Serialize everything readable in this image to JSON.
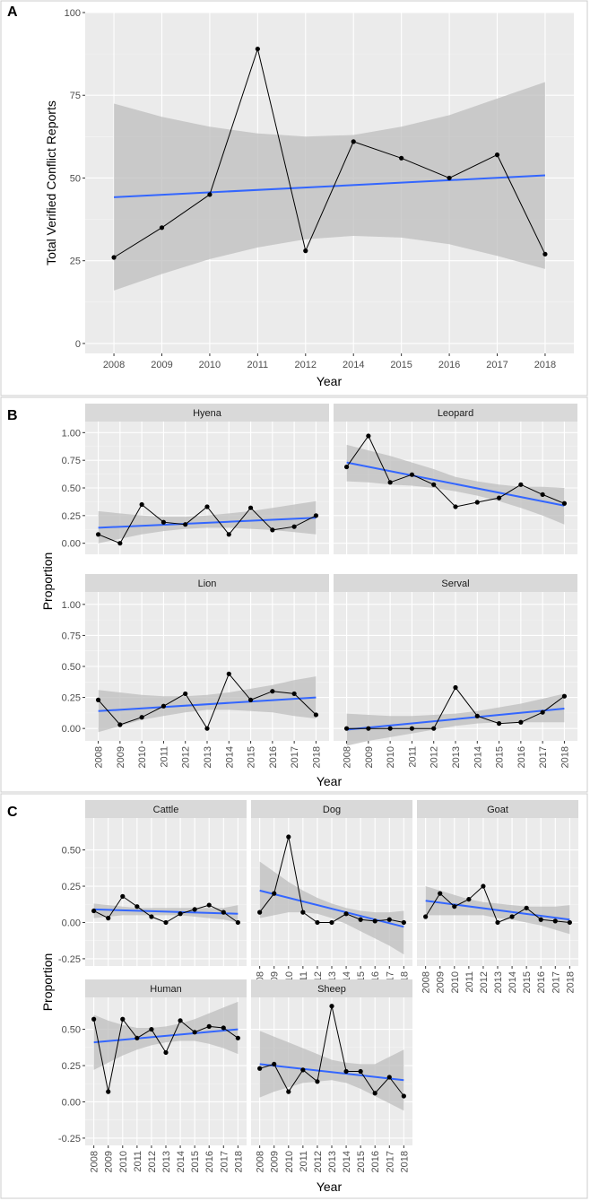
{
  "colors": {
    "panel_bg": "#ebebeb",
    "grid_major": "#ffffff",
    "grid_minor": "#f5f5f5",
    "ribbon": "#bdbdbd",
    "trend": "#3366ff",
    "series": "#000000",
    "strip_bg": "#d9d9d9",
    "border": "#cccccc"
  },
  "panels": {
    "a": {
      "letter": "A"
    },
    "b": {
      "letter": "B"
    },
    "c": {
      "letter": "C"
    }
  },
  "chart_data": [
    {
      "id": "A",
      "type": "line",
      "title": "",
      "xlabel": "Year",
      "ylabel": "Total Verified Conflict Reports",
      "categories": [
        "2008",
        "2009",
        "2010",
        "2011",
        "2012",
        "2014",
        "2015",
        "2016",
        "2017",
        "2018"
      ],
      "ylim": [
        -3,
        100
      ],
      "yticks": [
        0,
        25,
        50,
        75,
        100
      ],
      "series": [
        {
          "name": "Total",
          "values": [
            26,
            35,
            45,
            89,
            28,
            61,
            56,
            50,
            57,
            27
          ],
          "trend": [
            44.2,
            50.8
          ],
          "ribbon_low": [
            16,
            21,
            25.5,
            29,
            31.5,
            32.5,
            32,
            30,
            26.5,
            22.5
          ],
          "ribbon_high": [
            72.5,
            68.5,
            65.5,
            63.5,
            62.5,
            63,
            65.5,
            69,
            74,
            79
          ]
        }
      ]
    },
    {
      "id": "B",
      "type": "line",
      "xlabel": "Year",
      "ylabel": "Proportion",
      "categories": [
        "2008",
        "2009",
        "2010",
        "2011",
        "2012",
        "2013",
        "2014",
        "2015",
        "2016",
        "2017",
        "2018"
      ],
      "ylim": [
        -0.1,
        1.1
      ],
      "yticks": [
        0.0,
        0.25,
        0.5,
        0.75,
        1.0
      ],
      "ytick_labels": [
        "0.00",
        "0.25",
        "0.50",
        "0.75",
        "1.00"
      ],
      "series": [
        {
          "name": "Hyena",
          "values": [
            0.08,
            0.0,
            0.35,
            0.19,
            0.17,
            0.33,
            0.08,
            0.32,
            0.12,
            0.15,
            0.25
          ],
          "trend": [
            0.14,
            0.23
          ],
          "ribbon_low": [
            0.0,
            0.04,
            0.08,
            0.11,
            0.13,
            0.14,
            0.14,
            0.13,
            0.12,
            0.1,
            0.08
          ],
          "ribbon_high": [
            0.29,
            0.27,
            0.25,
            0.24,
            0.24,
            0.25,
            0.27,
            0.29,
            0.32,
            0.35,
            0.38
          ]
        },
        {
          "name": "Leopard",
          "values": [
            0.69,
            0.97,
            0.55,
            0.62,
            0.53,
            0.33,
            0.37,
            0.41,
            0.53,
            0.44,
            0.36
          ],
          "trend": [
            0.73,
            0.34
          ],
          "ribbon_low": [
            0.56,
            0.55,
            0.53,
            0.52,
            0.5,
            0.47,
            0.43,
            0.38,
            0.32,
            0.25,
            0.17
          ],
          "ribbon_high": [
            0.89,
            0.84,
            0.79,
            0.73,
            0.67,
            0.6,
            0.56,
            0.53,
            0.51,
            0.51,
            0.5
          ]
        },
        {
          "name": "Lion",
          "values": [
            0.23,
            0.03,
            0.09,
            0.18,
            0.28,
            0.0,
            0.44,
            0.23,
            0.3,
            0.28,
            0.11
          ],
          "trend": [
            0.14,
            0.25
          ],
          "ribbon_low": [
            -0.03,
            0.02,
            0.07,
            0.1,
            0.13,
            0.15,
            0.15,
            0.14,
            0.13,
            0.1,
            0.08
          ],
          "ribbon_high": [
            0.31,
            0.29,
            0.27,
            0.26,
            0.26,
            0.27,
            0.29,
            0.32,
            0.35,
            0.39,
            0.42
          ]
        },
        {
          "name": "Serval",
          "values": [
            0.0,
            0.0,
            0.0,
            0.0,
            0.0,
            0.33,
            0.1,
            0.04,
            0.05,
            0.13,
            0.26
          ],
          "trend": [
            -0.01,
            0.16
          ],
          "ribbon_low": [
            -0.14,
            -0.1,
            -0.07,
            -0.04,
            -0.01,
            0.02,
            0.04,
            0.05,
            0.05,
            0.05,
            0.05
          ],
          "ribbon_high": [
            0.12,
            0.11,
            0.1,
            0.1,
            0.11,
            0.12,
            0.14,
            0.17,
            0.2,
            0.24,
            0.28
          ]
        }
      ]
    },
    {
      "id": "C",
      "type": "line",
      "xlabel": "Year",
      "ylabel": "Proportion",
      "categories": [
        "2008",
        "2009",
        "2010",
        "2011",
        "2012",
        "2013",
        "2014",
        "2015",
        "2016",
        "2017",
        "2018"
      ],
      "ylim": [
        -0.3,
        0.72
      ],
      "yticks": [
        -0.25,
        0.0,
        0.25,
        0.5
      ],
      "ytick_labels": [
        "-0.25",
        "0.00",
        "0.25",
        "0.50"
      ],
      "series": [
        {
          "name": "Cattle",
          "values": [
            0.08,
            0.03,
            0.18,
            0.11,
            0.04,
            0.0,
            0.06,
            0.09,
            0.12,
            0.07,
            0.0
          ],
          "trend": [
            0.09,
            0.06
          ],
          "ribbon_low": [
            0.03,
            0.04,
            0.05,
            0.05,
            0.05,
            0.05,
            0.05,
            0.04,
            0.03,
            0.02,
            0.0
          ],
          "ribbon_high": [
            0.13,
            0.12,
            0.11,
            0.1,
            0.1,
            0.1,
            0.1,
            0.1,
            0.1,
            0.1,
            0.12
          ]
        },
        {
          "name": "Dog",
          "values": [
            0.07,
            0.2,
            0.59,
            0.07,
            0.0,
            0.0,
            0.06,
            0.02,
            0.01,
            0.02,
            0.0
          ],
          "trend": [
            0.22,
            -0.03
          ],
          "ribbon_low": [
            0.03,
            0.05,
            0.07,
            0.07,
            0.06,
            0.03,
            -0.01,
            -0.06,
            -0.11,
            -0.16,
            -0.22
          ],
          "ribbon_high": [
            0.42,
            0.35,
            0.28,
            0.22,
            0.17,
            0.13,
            0.1,
            0.08,
            0.07,
            0.07,
            0.08
          ]
        },
        {
          "name": "Goat",
          "values": [
            0.04,
            0.2,
            0.11,
            0.16,
            0.25,
            0.0,
            0.04,
            0.1,
            0.02,
            0.01,
            0.0
          ],
          "trend": [
            0.15,
            0.02
          ],
          "ribbon_low": [
            0.05,
            0.05,
            0.05,
            0.05,
            0.05,
            0.03,
            0.02,
            0.0,
            -0.02,
            -0.05,
            -0.08
          ],
          "ribbon_high": [
            0.25,
            0.22,
            0.19,
            0.16,
            0.14,
            0.13,
            0.12,
            0.11,
            0.11,
            0.11,
            0.12
          ]
        },
        {
          "name": "Human",
          "values": [
            0.57,
            0.07,
            0.57,
            0.44,
            0.5,
            0.34,
            0.56,
            0.48,
            0.52,
            0.51,
            0.44
          ],
          "trend": [
            0.41,
            0.5
          ],
          "ribbon_low": [
            0.22,
            0.27,
            0.32,
            0.36,
            0.39,
            0.41,
            0.42,
            0.42,
            0.4,
            0.37,
            0.33
          ],
          "ribbon_high": [
            0.6,
            0.56,
            0.53,
            0.51,
            0.51,
            0.52,
            0.54,
            0.57,
            0.61,
            0.65,
            0.69
          ]
        },
        {
          "name": "Sheep",
          "values": [
            0.23,
            0.26,
            0.07,
            0.22,
            0.14,
            0.66,
            0.21,
            0.21,
            0.06,
            0.17,
            0.04
          ],
          "trend": [
            0.26,
            0.15
          ],
          "ribbon_low": [
            0.03,
            0.07,
            0.1,
            0.13,
            0.14,
            0.15,
            0.13,
            0.09,
            0.04,
            -0.01,
            -0.06
          ],
          "ribbon_high": [
            0.49,
            0.45,
            0.41,
            0.37,
            0.33,
            0.29,
            0.27,
            0.26,
            0.26,
            0.31,
            0.36
          ]
        }
      ]
    }
  ]
}
